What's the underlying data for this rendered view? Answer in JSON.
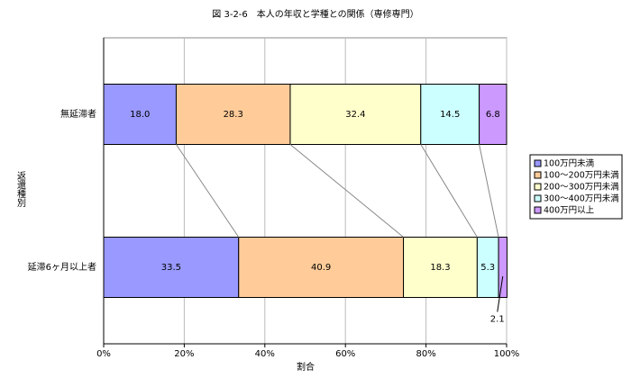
{
  "chart_data": {
    "type": "stacked-bar-horizontal",
    "title": "図 3-2-6　本人の年収と学種との関係（専修専門）",
    "x_label": "割合",
    "y_label": "返還種別",
    "categories": [
      "無延滞者",
      "延滞6ヶ月以上者"
    ],
    "series": [
      {
        "name": "100万円未満",
        "color": "#9999ff",
        "values": [
          18.0,
          33.5
        ],
        "value_labels": [
          "18.0",
          "33.5"
        ]
      },
      {
        "name": "100～200万円未満",
        "color": "#ffcc99",
        "values": [
          28.3,
          40.9
        ]
      },
      {
        "name": "200～300万円未満",
        "color": "#ffffcc",
        "values": [
          32.4,
          18.3
        ]
      },
      {
        "name": "300～400万円未満",
        "color": "#ccffff",
        "values": [
          14.5,
          5.3
        ]
      },
      {
        "name": "400万円以上",
        "color": "#cc99ff",
        "values": [
          6.8,
          2.1
        ]
      }
    ],
    "xlim": [
      0,
      100
    ],
    "xticks": [
      {
        "value": 0,
        "label": "0%"
      },
      {
        "value": 20,
        "label": "20%"
      },
      {
        "value": 40,
        "label": "40%"
      },
      {
        "value": 60,
        "label": "60%"
      },
      {
        "value": 80,
        "label": "80%"
      },
      {
        "value": 100,
        "label": "100%"
      }
    ],
    "grid": true,
    "legend": "right"
  }
}
